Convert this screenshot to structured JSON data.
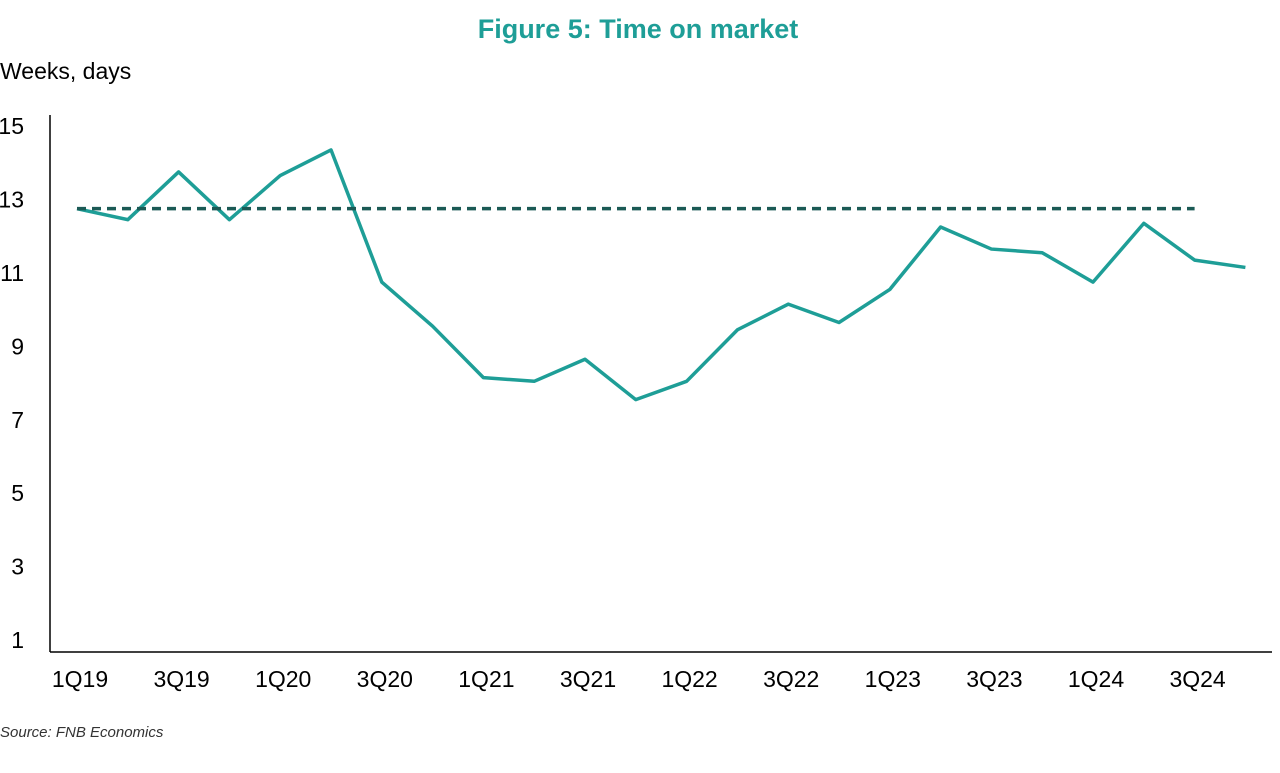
{
  "chart_data": {
    "type": "line",
    "title": "Figure 5: Time on market",
    "y_label": "Weeks, days",
    "source": "Source: FNB Economics",
    "categories": [
      "1Q19",
      null,
      "3Q19",
      null,
      "1Q20",
      null,
      "3Q20",
      null,
      "1Q21",
      null,
      "3Q21",
      null,
      "1Q22",
      null,
      "3Q22",
      null,
      "1Q23",
      null,
      "3Q23",
      null,
      "1Q24",
      null,
      "3Q24",
      null
    ],
    "series": [
      {
        "color": "#1e9e97",
        "style": "solid",
        "values": [
          12.8,
          12.5,
          13.8,
          12.5,
          13.7,
          14.4,
          10.8,
          9.6,
          8.2,
          8.1,
          8.7,
          7.6,
          8.1,
          9.5,
          10.2,
          9.7,
          10.6,
          12.3,
          11.7,
          11.6,
          10.8,
          12.4,
          11.4,
          11.2
        ]
      },
      {
        "color": "#1b5a55",
        "style": "dashed",
        "values": [
          12.8,
          12.8,
          12.8,
          12.8,
          12.8,
          12.8,
          12.8,
          12.8,
          12.8,
          12.8,
          12.8,
          12.8,
          12.8,
          12.8,
          12.8,
          12.8,
          12.8,
          12.8,
          12.8,
          12.8,
          12.8,
          12.8,
          12.8,
          null
        ]
      }
    ],
    "ylim": [
      0.73,
      15.35
    ],
    "yticks": [
      1,
      3,
      5,
      7,
      9,
      11,
      13,
      15
    ],
    "grid": false
  }
}
